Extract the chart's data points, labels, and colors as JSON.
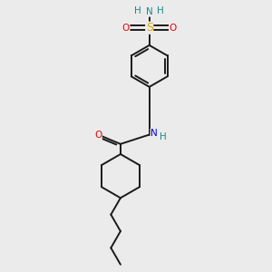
{
  "bg_color": "#ebebeb",
  "bond_color": "#1a1a1a",
  "bond_width": 1.4,
  "atom_colors": {
    "N": "#0000ee",
    "NH": "#0000ee",
    "NH2_N": "#1a8a8a",
    "NH2_H": "#1a8a8a",
    "O": "#ee0000",
    "S": "#ddaa00",
    "C": "#1a1a1a"
  },
  "font_size": 7.5,
  "fig_size": [
    3.0,
    3.0
  ],
  "dpi": 100,
  "xlim": [
    0,
    10
  ],
  "ylim": [
    0,
    10
  ],
  "ring_r": 0.78,
  "cyc_r": 0.82
}
